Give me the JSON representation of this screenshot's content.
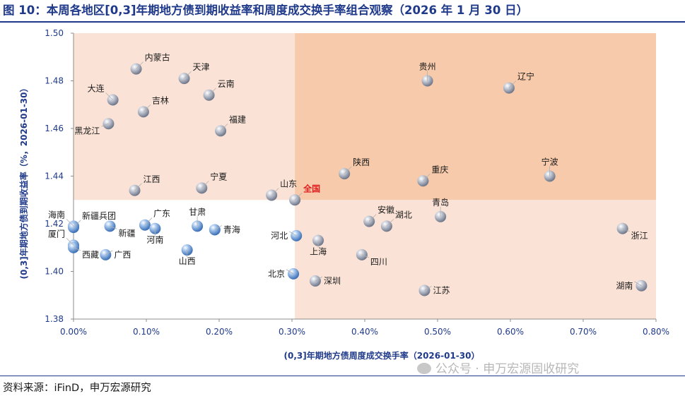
{
  "title": "图 10：本周各地区[0,3]年期地方债到期收益率和周度成交换手率组合观察（2026 年 1 月 30 日）",
  "source": "资料来源：iFinD，申万宏源研究",
  "watermark": "公众号 · 申万宏源固收研究",
  "colors": {
    "title": "#1f3a8a",
    "quad_light": "#fae3d6",
    "quad_dark": "#f6caaa",
    "marker": "#8a94a8",
    "marker_highlight": "#5a8fd0",
    "highlight_label": "#e02020"
  },
  "chart_data": {
    "type": "scatter",
    "xlabel": "(0,3]年期地方债周度成交换手率（2026-01-30）",
    "ylabel": "(0,3]年期地方债到期收益率（%，2026-01-30）",
    "xlim": [
      0,
      0.008
    ],
    "ylim": [
      1.38,
      1.5
    ],
    "x_ticks": [
      0,
      0.001,
      0.002,
      0.003,
      0.004,
      0.005,
      0.006,
      0.007,
      0.008
    ],
    "x_tick_labels": [
      "0.00%",
      "0.10%",
      "0.20%",
      "0.30%",
      "0.40%",
      "0.50%",
      "0.60%",
      "0.70%",
      "0.80%"
    ],
    "y_ticks": [
      1.38,
      1.4,
      1.42,
      1.44,
      1.46,
      1.48,
      1.5
    ],
    "y_tick_labels": [
      "1.38",
      "1.40",
      "1.42",
      "1.44",
      "1.46",
      "1.48",
      "1.50"
    ],
    "reference": {
      "name": "全国",
      "x": 0.00304,
      "y": 1.43
    },
    "points": [
      {
        "name": "内蒙古",
        "x": 0.00086,
        "y": 1.485,
        "label_pos": "right-up"
      },
      {
        "name": "天津",
        "x": 0.00152,
        "y": 1.481,
        "label_pos": "right-up"
      },
      {
        "name": "云南",
        "x": 0.00186,
        "y": 1.474,
        "label_pos": "right-up"
      },
      {
        "name": "大连",
        "x": 0.00054,
        "y": 1.472,
        "label_pos": "left-up"
      },
      {
        "name": "吉林",
        "x": 0.00096,
        "y": 1.467,
        "label_pos": "right-up"
      },
      {
        "name": "黑龙江",
        "x": 0.00048,
        "y": 1.462,
        "label_pos": "left-down"
      },
      {
        "name": "福建",
        "x": 0.00202,
        "y": 1.459,
        "label_pos": "right-up"
      },
      {
        "name": "贵州",
        "x": 0.00486,
        "y": 1.48,
        "label_pos": "up"
      },
      {
        "name": "辽宁",
        "x": 0.00598,
        "y": 1.477,
        "label_pos": "right-up"
      },
      {
        "name": "江西",
        "x": 0.00084,
        "y": 1.434,
        "label_pos": "right-up"
      },
      {
        "name": "宁夏",
        "x": 0.00176,
        "y": 1.435,
        "label_pos": "right-up"
      },
      {
        "name": "山东",
        "x": 0.00272,
        "y": 1.432,
        "label_pos": "right-up"
      },
      {
        "name": "陕西",
        "x": 0.00372,
        "y": 1.441,
        "label_pos": "right-up"
      },
      {
        "name": "重庆",
        "x": 0.0048,
        "y": 1.438,
        "label_pos": "right-up"
      },
      {
        "name": "宁波",
        "x": 0.00654,
        "y": 1.44,
        "label_pos": "up"
      },
      {
        "name": "安徽",
        "x": 0.00406,
        "y": 1.421,
        "label_pos": "right-up"
      },
      {
        "name": "湖北",
        "x": 0.0043,
        "y": 1.419,
        "label_pos": "right-up"
      },
      {
        "name": "青岛",
        "x": 0.00504,
        "y": 1.423,
        "label_pos": "up"
      },
      {
        "name": "浙江",
        "x": 0.00754,
        "y": 1.418,
        "label_pos": "right-down"
      },
      {
        "name": "海南",
        "x": 0.0,
        "y": 1.419,
        "label_pos": "left-up"
      },
      {
        "name": "新疆兵团",
        "x": 0.0,
        "y": 1.4185,
        "label_pos": "right-up"
      },
      {
        "name": "厦门",
        "x": 0.0,
        "y": 1.411,
        "label_pos": "left-up"
      },
      {
        "name": "西藏",
        "x": 0.0,
        "y": 1.41,
        "label_pos": "right-down"
      },
      {
        "name": "新疆",
        "x": 0.0005,
        "y": 1.419,
        "label_pos": "right-down"
      },
      {
        "name": "广西",
        "x": 0.00044,
        "y": 1.407,
        "label_pos": "right"
      },
      {
        "name": "广东",
        "x": 0.00098,
        "y": 1.4195,
        "label_pos": "right-up"
      },
      {
        "name": "河南",
        "x": 0.00112,
        "y": 1.418,
        "label_pos": "down"
      },
      {
        "name": "甘肃",
        "x": 0.0017,
        "y": 1.419,
        "label_pos": "up"
      },
      {
        "name": "青海",
        "x": 0.00194,
        "y": 1.4175,
        "label_pos": "right"
      },
      {
        "name": "山西",
        "x": 0.00156,
        "y": 1.409,
        "label_pos": "down"
      },
      {
        "name": "河北",
        "x": 0.00306,
        "y": 1.415,
        "label_pos": "left"
      },
      {
        "name": "上海",
        "x": 0.00336,
        "y": 1.413,
        "label_pos": "down"
      },
      {
        "name": "北京",
        "x": 0.00302,
        "y": 1.399,
        "label_pos": "left"
      },
      {
        "name": "深圳",
        "x": 0.00332,
        "y": 1.396,
        "label_pos": "right"
      },
      {
        "name": "四川",
        "x": 0.00396,
        "y": 1.407,
        "label_pos": "right-down"
      },
      {
        "name": "江苏",
        "x": 0.00482,
        "y": 1.392,
        "label_pos": "right"
      },
      {
        "name": "湖南",
        "x": 0.0078,
        "y": 1.394,
        "label_pos": "left"
      }
    ]
  }
}
